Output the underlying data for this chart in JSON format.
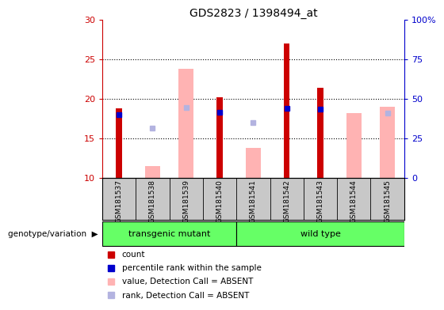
{
  "title": "GDS2823 / 1398494_at",
  "samples": [
    "GSM181537",
    "GSM181538",
    "GSM181539",
    "GSM181540",
    "GSM181541",
    "GSM181542",
    "GSM181543",
    "GSM181544",
    "GSM181545"
  ],
  "count_values": [
    18.8,
    null,
    null,
    20.2,
    null,
    27.0,
    21.4,
    null,
    null
  ],
  "percentile_rank": [
    18.0,
    null,
    null,
    18.3,
    null,
    18.8,
    18.7,
    null,
    null
  ],
  "absent_value": [
    null,
    11.5,
    23.8,
    null,
    13.8,
    null,
    null,
    18.2,
    19.0
  ],
  "absent_rank": [
    null,
    16.3,
    18.9,
    null,
    17.0,
    null,
    null,
    null,
    18.2
  ],
  "ylim": [
    10,
    30
  ],
  "yticks": [
    10,
    15,
    20,
    25,
    30
  ],
  "right_ytick_labels": [
    "0",
    "25",
    "50",
    "75",
    "100%"
  ],
  "genotype_groups": [
    {
      "label": "transgenic mutant",
      "start": 0,
      "end": 4
    },
    {
      "label": "wild type",
      "start": 4,
      "end": 9
    }
  ],
  "genotype_label": "genotype/variation",
  "group_color": "#66ff66",
  "bar_bg_color": "#c8c8c8",
  "count_color": "#cc0000",
  "rank_color": "#0000cc",
  "absent_value_color": "#ffb3b3",
  "absent_rank_color": "#b3b3e0",
  "left_tick_color": "#cc0000",
  "right_tick_color": "#0000cc",
  "absent_bar_width": 0.45,
  "count_bar_width": 0.18,
  "marker_size": 5,
  "legend_items": [
    {
      "color": "#cc0000",
      "label": "count"
    },
    {
      "color": "#0000cc",
      "label": "percentile rank within the sample"
    },
    {
      "color": "#ffb3b3",
      "label": "value, Detection Call = ABSENT"
    },
    {
      "color": "#b3b3e0",
      "label": "rank, Detection Call = ABSENT"
    }
  ]
}
